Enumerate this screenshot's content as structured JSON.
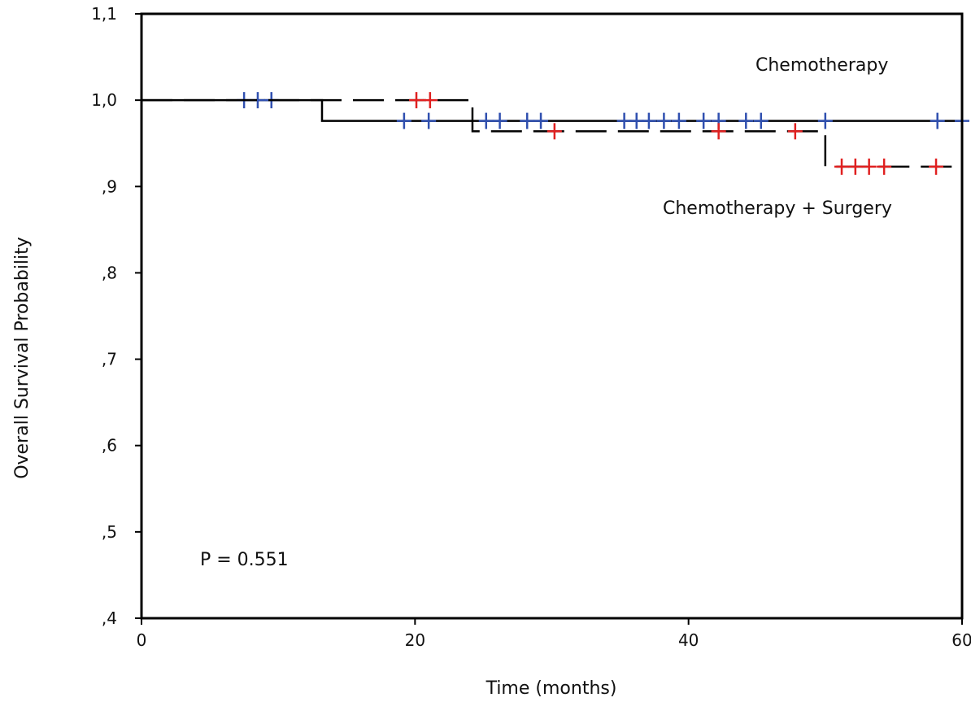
{
  "chart_data": {
    "type": "line",
    "title": "",
    "xlabel": "Time (months)",
    "ylabel": "Overall Survival Probability",
    "xlim": [
      0,
      60
    ],
    "ylim": [
      0.4,
      1.1
    ],
    "x_ticks": [
      0,
      20,
      40,
      60
    ],
    "x_tick_labels": [
      "0",
      "20",
      "40",
      "60"
    ],
    "y_ticks": [
      0.4,
      0.5,
      0.6,
      0.7,
      0.8,
      0.9,
      1.0,
      1.1
    ],
    "y_tick_labels": [
      ",4",
      ",5",
      ",6",
      ",7",
      ",8",
      ",9",
      "1,0",
      "1,1"
    ],
    "grid": false,
    "annotation": "P = 0.551",
    "series": [
      {
        "name": "Chemotherapy",
        "line_style": "solid",
        "line_color": "#000000",
        "censor_color": "#3050b0",
        "steps": [
          [
            0,
            1.0
          ],
          [
            13.2,
            0.976
          ],
          [
            60,
            0.976
          ]
        ],
        "censored_x": [
          7.5,
          8.5,
          9.5,
          19.2,
          21.0,
          25.2,
          26.2,
          28.2,
          29.2,
          35.3,
          36.2,
          37.1,
          38.2,
          39.3,
          41.1,
          42.2,
          44.2,
          45.3,
          50.0,
          58.2,
          60.0
        ]
      },
      {
        "name": "Chemotherapy + Surgery",
        "line_style": "dashed",
        "line_color": "#000000",
        "censor_color": "#e02020",
        "steps": [
          [
            0,
            1.0
          ],
          [
            24.2,
            0.964
          ],
          [
            50.0,
            0.923
          ],
          [
            60,
            0.923
          ]
        ],
        "censored_x": [
          20.1,
          21.1,
          30.2,
          42.2,
          47.8,
          51.2,
          52.2,
          53.2,
          54.3,
          58.1
        ]
      }
    ],
    "series_label_positions": [
      "top-right",
      "below-lines-right"
    ],
    "colors": {
      "axis": "#000000",
      "chemo_censor": "#3050b0",
      "surgery_censor": "#e02020"
    }
  }
}
